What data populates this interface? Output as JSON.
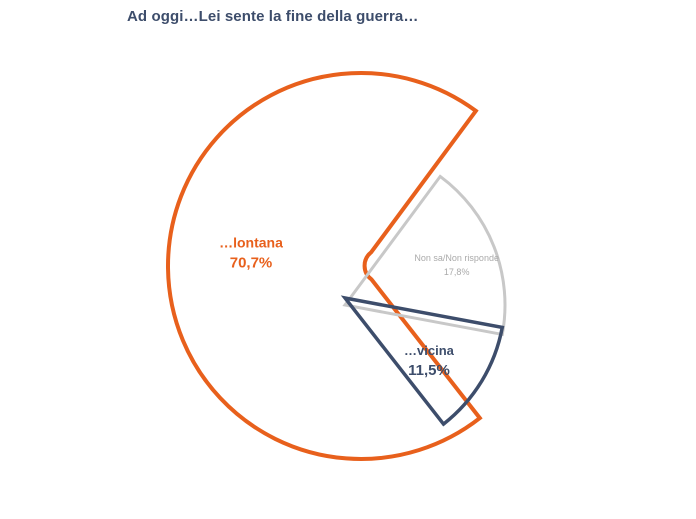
{
  "title": "Ad oggi…Lei sente la fine della guerra…",
  "chart_data": {
    "type": "pie",
    "title": "Ad oggi…Lei sente la fine della guerra…",
    "slices": [
      {
        "label": "…lontana",
        "value": 70.7,
        "value_label": "70,7%",
        "color": "#e8601c"
      },
      {
        "label": "Non sa/Non risponde",
        "value": 17.8,
        "value_label": "17,8%",
        "color": "#c8c8c8"
      },
      {
        "label": "…vicina",
        "value": 11.5,
        "value_label": "11,5%",
        "color": "#3d4d6b"
      }
    ],
    "style": "exploded-outline",
    "legend": "none"
  }
}
